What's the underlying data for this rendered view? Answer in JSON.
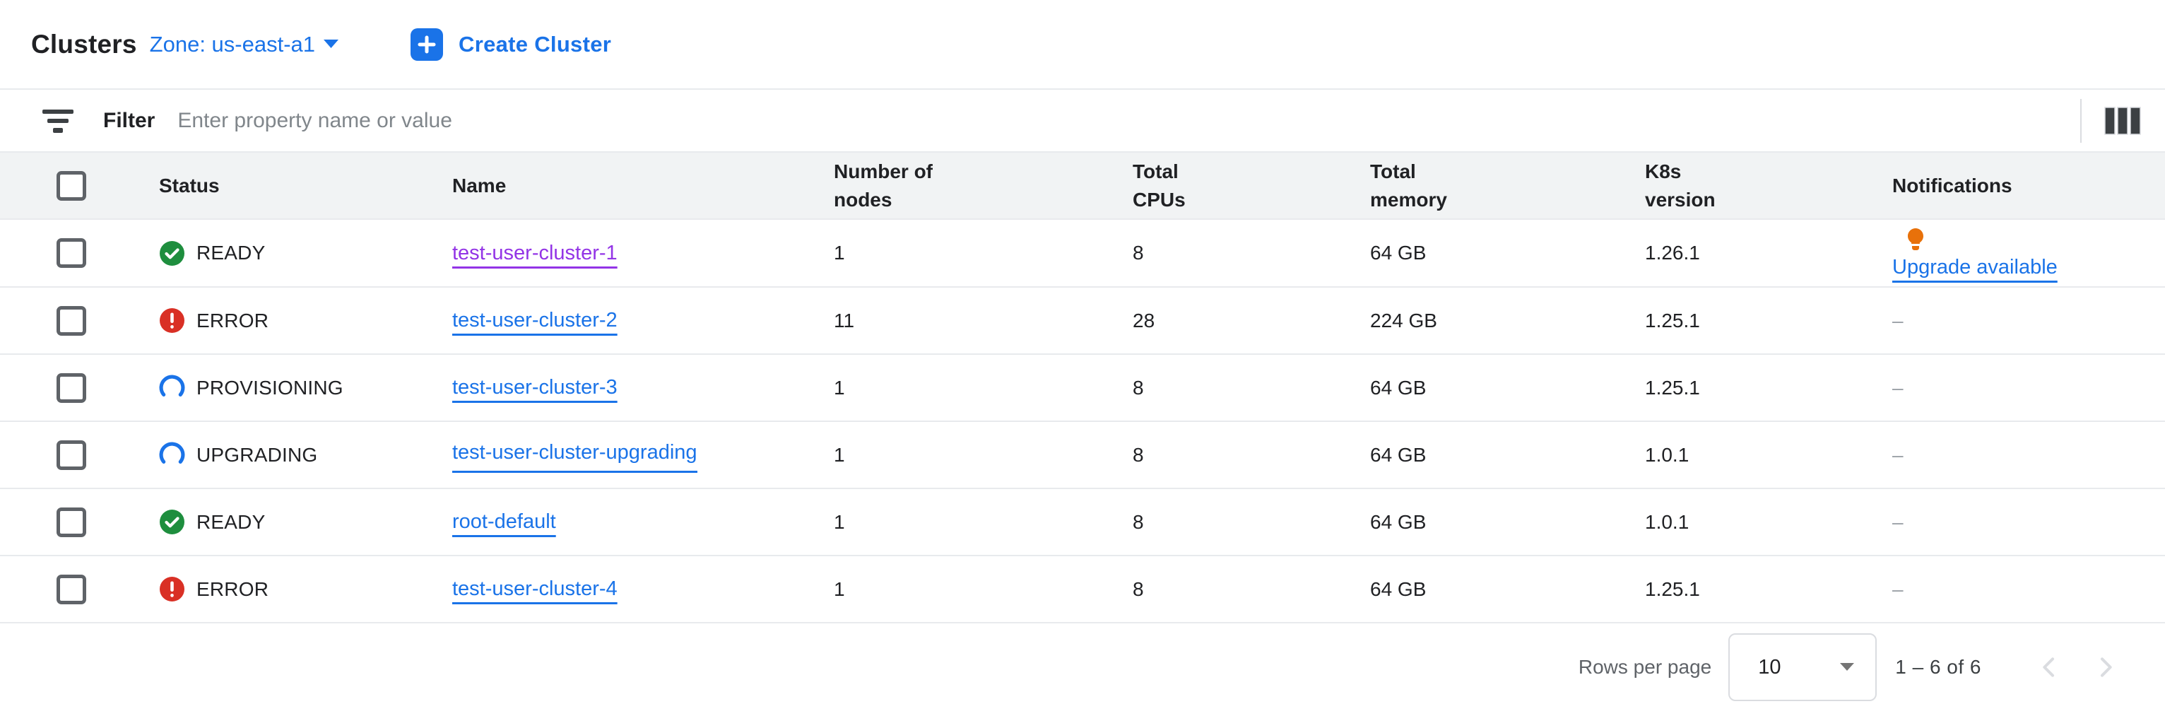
{
  "header": {
    "title": "Clusters",
    "zone_label": "Zone: us-east-a1",
    "create_button": "Create Cluster"
  },
  "filter": {
    "label": "Filter",
    "placeholder": "Enter property name or value"
  },
  "table": {
    "columns": [
      "Status",
      "Name",
      "Number of nodes",
      "Total CPUs",
      "Total memory",
      "K8s version",
      "Notifications"
    ],
    "rows": [
      {
        "status": "READY",
        "status_kind": "ready",
        "name": "test-user-cluster-1",
        "visited": true,
        "wrap": false,
        "nodes": "1",
        "cpus": "8",
        "memory": "64 GB",
        "k8s": "1.26.1",
        "notification": {
          "type": "upgrade",
          "label": "Upgrade available"
        }
      },
      {
        "status": "ERROR",
        "status_kind": "error",
        "name": "test-user-cluster-2",
        "visited": false,
        "wrap": false,
        "nodes": "11",
        "cpus": "28",
        "memory": "224 GB",
        "k8s": "1.25.1",
        "notification": {
          "type": "none",
          "label": "–"
        }
      },
      {
        "status": "PROVISIONING",
        "status_kind": "progress",
        "name": "test-user-cluster-3",
        "visited": false,
        "wrap": false,
        "nodes": "1",
        "cpus": "8",
        "memory": "64 GB",
        "k8s": "1.25.1",
        "notification": {
          "type": "none",
          "label": "–"
        }
      },
      {
        "status": "UPGRADING",
        "status_kind": "progress",
        "name": "test-user-cluster-upgrading",
        "visited": false,
        "wrap": true,
        "nodes": "1",
        "cpus": "8",
        "memory": "64 GB",
        "k8s": "1.0.1",
        "notification": {
          "type": "none",
          "label": "–"
        }
      },
      {
        "status": "READY",
        "status_kind": "ready",
        "name": "root-default",
        "visited": false,
        "wrap": false,
        "nodes": "1",
        "cpus": "8",
        "memory": "64 GB",
        "k8s": "1.0.1",
        "notification": {
          "type": "none",
          "label": "–"
        }
      },
      {
        "status": "ERROR",
        "status_kind": "error",
        "name": "test-user-cluster-4",
        "visited": false,
        "wrap": false,
        "nodes": "1",
        "cpus": "8",
        "memory": "64 GB",
        "k8s": "1.25.1",
        "notification": {
          "type": "none",
          "label": "–"
        }
      }
    ]
  },
  "footer": {
    "rows_per_page_label": "Rows per page",
    "rows_per_page_value": "10",
    "range_text": "1 – 6 of 6",
    "prev_enabled": false,
    "next_enabled": false
  },
  "icons": {
    "add": "add-icon",
    "zone_caret": "chevron-down-icon",
    "filter": "filter-icon",
    "columns": "column-display-icon",
    "ready": "check-circle-icon",
    "error": "error-circle-icon",
    "progress": "progress-spinner-icon",
    "upgrade": "lightbulb-icon",
    "select_caret": "dropdown-arrow-icon",
    "prev": "chevron-left-icon",
    "next": "chevron-right-icon"
  },
  "colors": {
    "accent_blue": "#1a73e8",
    "visited_purple": "#9334e6",
    "status_green": "#1e8e3e",
    "status_red": "#d93025",
    "bulb_orange": "#e8710a",
    "text_primary": "#202124",
    "text_secondary": "#5f6368",
    "placeholder": "#80868b",
    "row_border": "#e8eaed",
    "control_border": "#dadce0",
    "header_bg": "#f1f3f4",
    "empty_dash": "#9aa0a6"
  }
}
